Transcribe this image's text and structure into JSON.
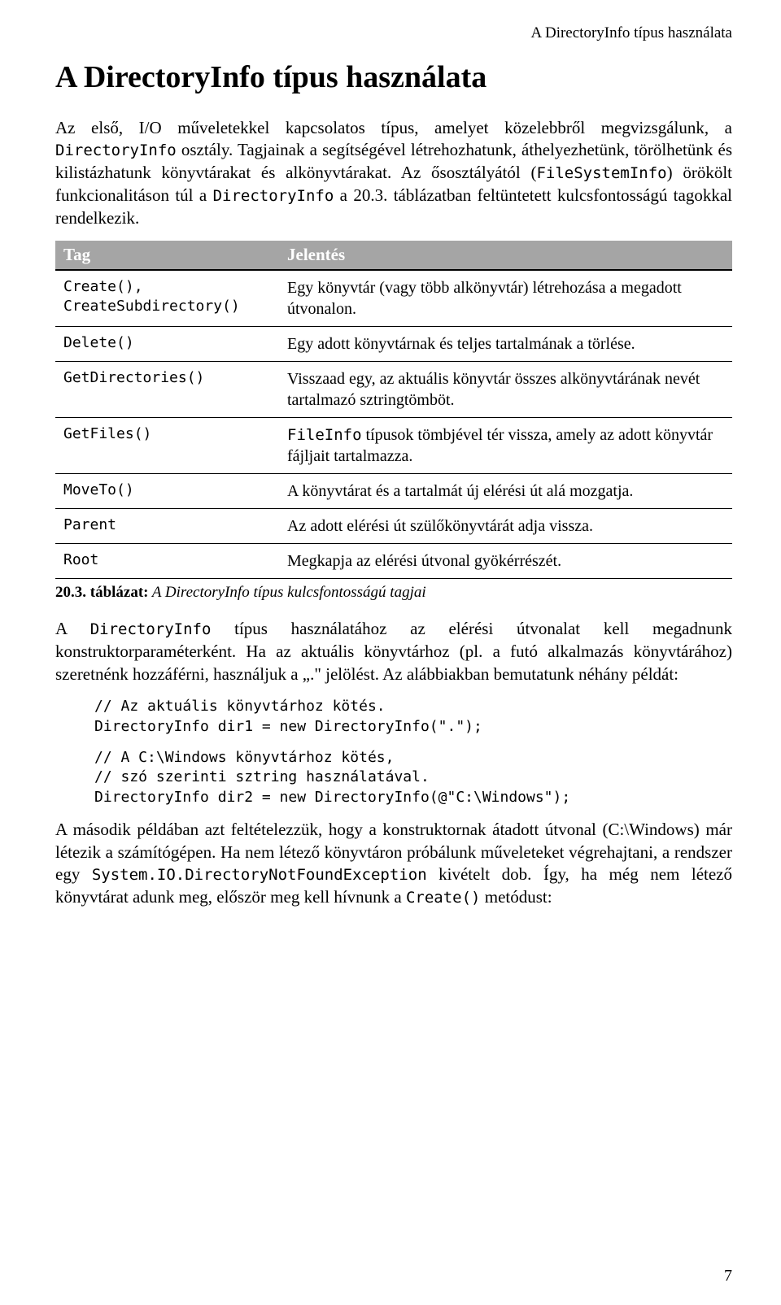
{
  "running_head": "A DirectoryInfo típus használata",
  "title": "A DirectoryInfo típus használata",
  "para1_parts": [
    {
      "t": "Az első, I/O műveletekkel kapcsolatos típus, amelyet közelebbről megvizsgálunk, a "
    },
    {
      "t": "DirectoryInfo",
      "mono": true
    },
    {
      "t": " osztály. Tagjainak a segítségével létrehozhatunk, áthelyezhetünk, törölhetünk és kilistázhatunk könyvtárakat és alkönyvtárakat. Az ősosztályától ("
    },
    {
      "t": "FileSystemInfo",
      "mono": true
    },
    {
      "t": ") örökölt funkcionalitáson túl a "
    },
    {
      "t": "Directory­Info",
      "mono": true
    },
    {
      "t": " a 20.3. táblázatban feltüntetett kulcsfontosságú tagokkal rendelkezik."
    }
  ],
  "table": {
    "head_tag": "Tag",
    "head_meaning": "Jelentés",
    "rows": [
      {
        "tag": "Create(),\nCreateSubdirectory()",
        "meaning": "Egy könyvtár (vagy több alkönyvtár) létrehozása a megadott útvonalon."
      },
      {
        "tag": "Delete()",
        "meaning": "Egy adott könyvtárnak és teljes tartalmának a törlése."
      },
      {
        "tag": "GetDirectories()",
        "meaning": "Visszaad egy, az aktuális könyvtár összes alkönyvtárának nevét tartalmazó sztringtömböt."
      },
      {
        "tag": "GetFiles()",
        "meaning_parts": [
          {
            "t": "FileInfo",
            "mono": true
          },
          {
            "t": " típusok tömbjével tér vissza, amely az adott könyvtár fájljait tartalmazza."
          }
        ]
      },
      {
        "tag": "MoveTo()",
        "meaning": "A könyvtárat és a tartalmát új elérési út alá mozgatja."
      },
      {
        "tag": "Parent",
        "meaning": "Az adott elérési út szülőkönyvtárát adja vissza."
      },
      {
        "tag": "Root",
        "meaning": "Megkapja az elérési útvonal gyökérrészét."
      }
    ]
  },
  "caption_label": "20.3. táblázat:",
  "caption_text": " A DirectoryInfo típus kulcsfontosságú tagjai",
  "para2_parts": [
    {
      "t": "A "
    },
    {
      "t": "DirectoryInfo",
      "mono": true
    },
    {
      "t": " típus használatához az elérési útvonalat kell megadnunk konstruktorparaméterként. Ha az aktuális könyvtárhoz (pl. a futó alkalmazás könyvtárához) szeretnénk hozzáférni, használjuk a „.\" jelölést. Az alábbiakban bemutatunk néhány példát:"
    }
  ],
  "code1": "// Az aktuális könyvtárhoz kötés.\nDirectoryInfo dir1 = new DirectoryInfo(\".\");",
  "code2": "// A C:\\Windows könyvtárhoz kötés,\n// szó szerinti sztring használatával.\nDirectoryInfo dir2 = new DirectoryInfo(@\"C:\\Windows\");",
  "para3_parts": [
    {
      "t": "A második példában azt feltételezzük, hogy a konstruktornak átadott útvonal (C:\\Windows) már létezik a számítógépen. Ha nem létező könyvtáron próbálunk műveleteket végrehajtani, a rendszer egy "
    },
    {
      "t": "System.IO.Directory­NotFoundException",
      "mono": true
    },
    {
      "t": " kivételt dob. Így, ha még nem létező könyvtárat adunk meg, először meg kell hívnunk a "
    },
    {
      "t": "Create()",
      "mono": true
    },
    {
      "t": " metódust:"
    }
  ],
  "page_number": "7",
  "colors": {
    "table_header_bg": "#a5a5a5",
    "table_header_fg": "#ffffff",
    "body_fg": "#000000",
    "page_bg": "#ffffff",
    "rule": "#000000"
  },
  "typography": {
    "body_pt": 21,
    "title_pt": 38,
    "mono_pt": 19,
    "caption_pt": 19,
    "code_pt": 18
  }
}
